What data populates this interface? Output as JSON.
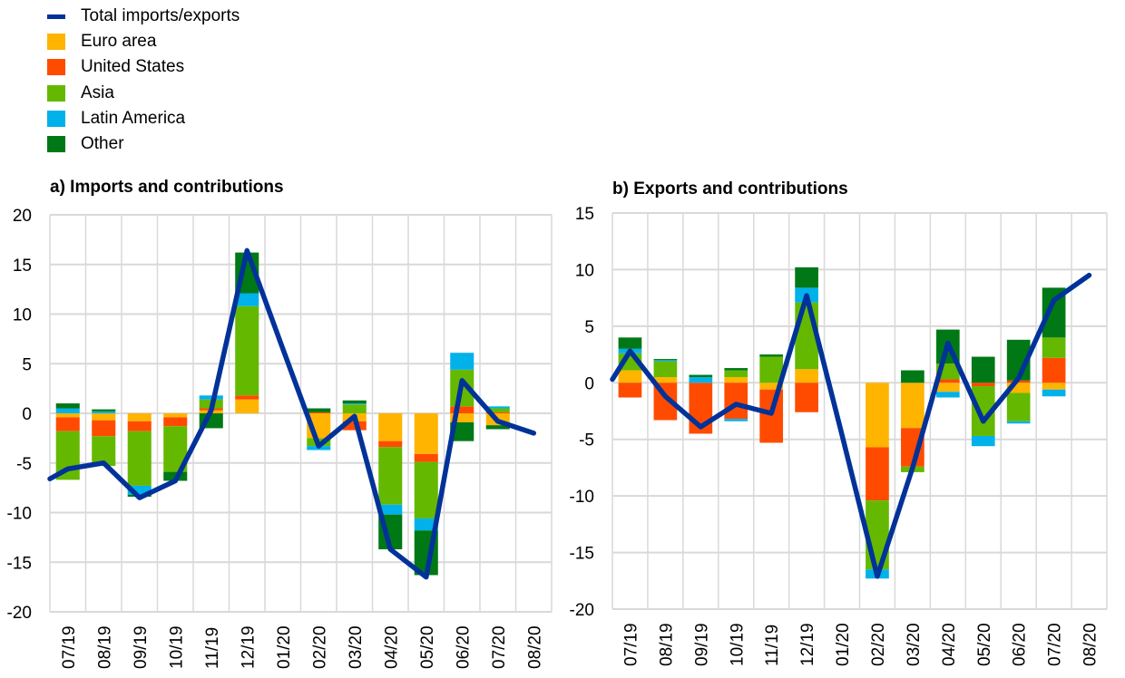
{
  "legend": [
    {
      "key": "total",
      "label": "Total imports/exports",
      "color": "#003299",
      "kind": "line"
    },
    {
      "key": "euro",
      "label": "Euro area",
      "color": "#FFB400",
      "kind": "bar"
    },
    {
      "key": "us",
      "label": "United States",
      "color": "#FF4B00",
      "kind": "bar"
    },
    {
      "key": "asia",
      "label": "Asia",
      "color": "#65B800",
      "kind": "bar"
    },
    {
      "key": "latam",
      "label": "Latin America",
      "color": "#00B1EA",
      "kind": "bar"
    },
    {
      "key": "other",
      "label": "Other",
      "color": "#007816",
      "kind": "bar"
    }
  ],
  "chart_data": [
    {
      "type": "bar",
      "stacked": true,
      "title": "a) Imports and contributions",
      "categories": [
        "07/19",
        "08/19",
        "09/19",
        "10/19",
        "11/19",
        "12/19",
        "01/20",
        "02/20",
        "03/20",
        "04/20",
        "05/20",
        "06/20",
        "07/20",
        "08/20"
      ],
      "ylim": [
        -20,
        20
      ],
      "yticks": [
        20,
        15,
        10,
        5,
        0,
        -5,
        -10,
        -15,
        -20
      ],
      "grid": true,
      "series": [
        {
          "name": "Euro area",
          "key": "euro",
          "values": [
            -0.4,
            -0.7,
            -0.8,
            -0.4,
            0.3,
            1.4,
            null,
            -2.5,
            -0.8,
            -2.8,
            -4.1,
            -0.9,
            -1.2,
            null
          ]
        },
        {
          "name": "United States",
          "key": "us",
          "values": [
            -1.4,
            -1.6,
            -1.0,
            -0.9,
            0.2,
            0.4,
            null,
            0.1,
            -0.9,
            -0.6,
            -0.8,
            0.7,
            0.1,
            null
          ]
        },
        {
          "name": "Asia",
          "key": "asia",
          "values": [
            -4.9,
            -3.0,
            -5.5,
            -4.6,
            0.9,
            9.0,
            null,
            -0.8,
            0.9,
            -5.8,
            -5.7,
            3.7,
            0.4,
            null
          ]
        },
        {
          "name": "Latin America",
          "key": "latam",
          "values": [
            0.5,
            0.2,
            -0.9,
            0.0,
            0.4,
            1.3,
            null,
            -0.4,
            0.1,
            -1.0,
            -1.2,
            1.7,
            0.2,
            null
          ]
        },
        {
          "name": "Other",
          "key": "other",
          "values": [
            0.5,
            0.2,
            -0.2,
            -0.9,
            -1.5,
            4.1,
            null,
            0.4,
            0.3,
            -3.5,
            -4.5,
            -1.9,
            -0.4,
            null
          ]
        }
      ],
      "line": {
        "name": "Total imports/exports",
        "start_value": -6.6,
        "values": [
          -5.6,
          -5.0,
          -8.5,
          -6.8,
          0.3,
          16.4,
          6.5,
          -3.3,
          -0.3,
          -13.7,
          -16.5,
          3.3,
          -0.8,
          -2.0
        ]
      }
    },
    {
      "type": "bar",
      "stacked": true,
      "title": "b) Exports and contributions",
      "categories": [
        "07/19",
        "08/19",
        "09/19",
        "10/19",
        "11/19",
        "12/19",
        "01/20",
        "02/20",
        "03/20",
        "04/20",
        "05/20",
        "06/20",
        "07/20",
        "08/20"
      ],
      "ylim": [
        -20,
        15
      ],
      "yticks": [
        15,
        10,
        5,
        0,
        -5,
        -10,
        -15,
        -20
      ],
      "grid": true,
      "series": [
        {
          "name": "Euro area",
          "key": "euro",
          "values": [
            1.1,
            0.5,
            0.0,
            0.5,
            -0.6,
            1.2,
            null,
            -5.7,
            -4.0,
            -0.8,
            0.0,
            -0.9,
            -0.6,
            null
          ]
        },
        {
          "name": "United States",
          "key": "us",
          "values": [
            -1.3,
            -3.3,
            -4.5,
            -3.2,
            -4.7,
            -2.6,
            null,
            -4.7,
            -3.4,
            0.3,
            -0.3,
            0.2,
            2.2,
            null
          ]
        },
        {
          "name": "Asia",
          "key": "asia",
          "values": [
            1.5,
            1.4,
            0.0,
            0.6,
            2.3,
            5.9,
            null,
            -6.1,
            -0.5,
            1.4,
            -4.4,
            -2.5,
            1.8,
            null
          ]
        },
        {
          "name": "Latin America",
          "key": "latam",
          "values": [
            0.4,
            0.1,
            0.5,
            -0.2,
            0.0,
            1.3,
            null,
            -0.8,
            0.0,
            -0.5,
            -0.9,
            -0.2,
            -0.6,
            null
          ]
        },
        {
          "name": "Other",
          "key": "other",
          "values": [
            1.0,
            0.1,
            0.2,
            0.2,
            0.2,
            1.8,
            null,
            0.0,
            1.1,
            3.0,
            2.3,
            3.6,
            4.4,
            null
          ]
        }
      ],
      "line": {
        "name": "Total imports/exports",
        "start_value": 0.3,
        "values": [
          2.8,
          -1.2,
          -3.9,
          -1.9,
          -2.7,
          7.7,
          -4.6,
          -17.1,
          -7.5,
          3.5,
          -3.4,
          0.4,
          7.3,
          9.5
        ]
      }
    }
  ]
}
